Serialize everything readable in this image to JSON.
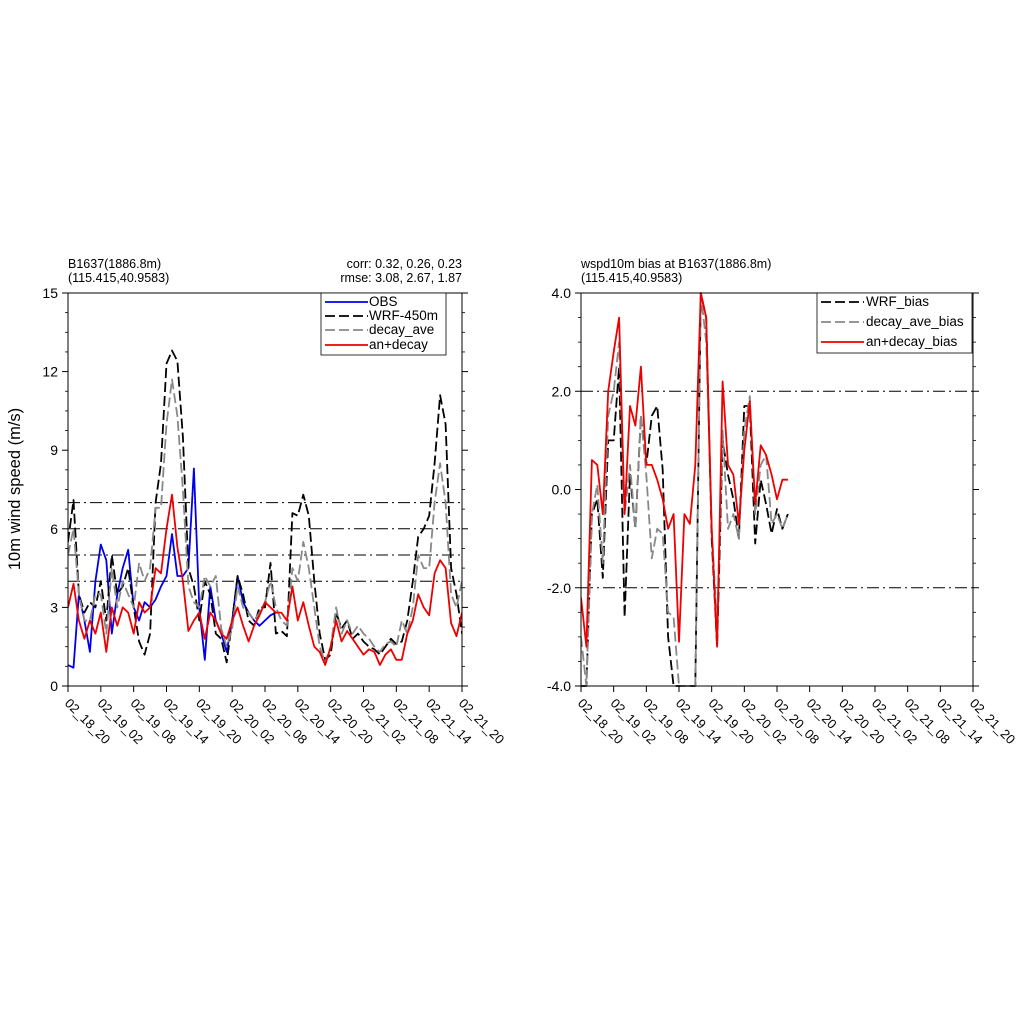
{
  "colors": {
    "obs": "#0000ee",
    "wrf": "#000000",
    "decay": "#888888",
    "andecay": "#ee0000",
    "axis": "#000000"
  },
  "left": {
    "title_line1": "B1637(1886.8m)",
    "title_line2": "(115.415,40.9583)",
    "stats_line1": "corr:  0.32, 0.26, 0.23",
    "stats_line2": "rmse: 3.08, 2.67, 1.87",
    "ylabel": "10m wind speed (m/s)",
    "legend": [
      "OBS",
      "WRF-450m",
      "decay_ave",
      "an+decay"
    ]
  },
  "right": {
    "title_line1": "wspd10m bias at B1637(1886.8m)",
    "title_line2": "(115.415,40.9583)",
    "legend": [
      "WRF_bias",
      "decay_ave_bias",
      "an+decay_bias"
    ]
  },
  "chart_data": [
    {
      "type": "line",
      "x_tick_labels": [
        "02_18_20",
        "02_19_02",
        "02_19_08",
        "02_19_14",
        "02_19_20",
        "02_20_02",
        "02_20_08",
        "02_20_14",
        "02_20_20",
        "02_21_02",
        "02_21_08",
        "02_21_14",
        "02_21_20"
      ],
      "xlim": [
        0,
        72
      ],
      "ylim": [
        0,
        15
      ],
      "y_ticks": [
        0,
        3,
        6,
        9,
        12,
        15
      ],
      "ylabel": "10m wind speed (m/s)",
      "reference_lines": [
        4,
        5,
        6,
        7
      ],
      "legend_position": "top-right",
      "series": [
        {
          "name": "OBS",
          "style": "solid",
          "color": "#0000ee",
          "x": [
            0,
            1,
            2,
            3,
            4,
            5,
            6,
            7,
            8,
            9,
            10,
            11,
            12,
            13,
            14,
            15,
            16,
            17,
            18,
            19,
            20,
            21,
            22,
            23,
            24,
            25,
            26,
            27,
            28,
            29,
            30,
            31,
            32,
            33,
            34,
            35,
            36,
            37,
            38
          ],
          "y": [
            0.8,
            0.7,
            3.5,
            2.5,
            1.3,
            4.0,
            5.4,
            4.8,
            2.0,
            3.5,
            4.5,
            5.2,
            3.0,
            2.5,
            3.2,
            3.0,
            3.3,
            3.8,
            4.2,
            5.8,
            4.2,
            4.2,
            4.5,
            8.3,
            3.0,
            1.0,
            3.8,
            2.5,
            2.0,
            1.3,
            2.5,
            4.2,
            3.2,
            2.8,
            2.5,
            2.3,
            2.5,
            2.7,
            2.8
          ]
        },
        {
          "name": "WRF-450m",
          "style": "dash",
          "color": "#000000",
          "x": [
            0,
            1,
            2,
            3,
            4,
            5,
            6,
            7,
            8,
            9,
            10,
            11,
            12,
            13,
            14,
            15,
            16,
            17,
            18,
            19,
            20,
            21,
            22,
            23,
            24,
            25,
            26,
            27,
            28,
            29,
            30,
            31,
            32,
            33,
            34,
            35,
            36,
            37,
            38,
            39,
            40,
            41,
            42,
            43,
            44,
            45,
            46,
            47,
            48,
            49,
            50,
            51,
            52,
            53,
            54,
            55,
            56,
            57,
            58,
            59,
            60,
            61,
            62,
            63,
            64,
            65,
            66,
            67,
            68,
            69,
            70,
            71,
            72
          ],
          "y": [
            5.5,
            7.1,
            3.5,
            2.8,
            3.2,
            3.0,
            4.0,
            2.5,
            5.0,
            3.5,
            3.8,
            4.5,
            3.0,
            1.7,
            1.2,
            2.0,
            7.0,
            8.5,
            12.3,
            12.8,
            12.4,
            9.5,
            4.5,
            3.8,
            2.5,
            4.0,
            3.5,
            2.0,
            1.8,
            0.9,
            2.5,
            4.2,
            3.5,
            2.5,
            2.3,
            3.0,
            3.0,
            4.7,
            2.0,
            2.1,
            1.9,
            6.6,
            6.5,
            7.3,
            6.5,
            4.0,
            2.0,
            1.0,
            1.2,
            2.8,
            2.2,
            2.5,
            1.8,
            2.0,
            1.7,
            1.5,
            1.4,
            1.2,
            1.5,
            1.8,
            1.6,
            1.7,
            2.5,
            4.0,
            5.7,
            6.0,
            6.5,
            8.5,
            11.1,
            10.0,
            4.5,
            3.5,
            2.0
          ]
        },
        {
          "name": "decay_ave",
          "style": "dash",
          "color": "#888888",
          "x": [
            0,
            1,
            2,
            3,
            4,
            5,
            6,
            7,
            8,
            9,
            10,
            11,
            12,
            13,
            14,
            15,
            16,
            17,
            18,
            19,
            20,
            21,
            22,
            23,
            24,
            25,
            26,
            27,
            28,
            29,
            30,
            31,
            32,
            33,
            34,
            35,
            36,
            37,
            38,
            39,
            40,
            41,
            42,
            43,
            44,
            45,
            46,
            47,
            48,
            49,
            50,
            51,
            52,
            53,
            54,
            55,
            56,
            57,
            58,
            59,
            60,
            61,
            62,
            63,
            64,
            65,
            66,
            67,
            68,
            69,
            70,
            71,
            72
          ],
          "y": [
            5.0,
            6.0,
            3.5,
            2.5,
            2.5,
            3.5,
            3.5,
            2.0,
            4.5,
            3.0,
            4.0,
            3.5,
            3.0,
            4.7,
            4.0,
            4.5,
            6.8,
            6.8,
            10.0,
            11.7,
            10.3,
            7.5,
            3.8,
            3.2,
            3.0,
            4.2,
            3.8,
            4.2,
            2.2,
            1.5,
            2.2,
            3.8,
            3.0,
            2.8,
            2.5,
            2.8,
            3.2,
            4.0,
            3.0,
            2.5,
            2.3,
            4.5,
            4.0,
            5.5,
            4.5,
            3.0,
            1.5,
            0.9,
            1.5,
            3.0,
            2.0,
            2.5,
            2.0,
            2.3,
            2.0,
            1.8,
            1.5,
            1.3,
            1.6,
            1.7,
            1.5,
            2.5,
            2.0,
            3.0,
            5.0,
            4.5,
            4.5,
            7.0,
            8.5,
            7.0,
            3.5,
            3.0,
            4.0
          ]
        },
        {
          "name": "an+decay",
          "style": "solid",
          "color": "#ee0000",
          "x": [
            0,
            1,
            2,
            3,
            4,
            5,
            6,
            7,
            8,
            9,
            10,
            11,
            12,
            13,
            14,
            15,
            16,
            17,
            18,
            19,
            20,
            21,
            22,
            23,
            24,
            25,
            26,
            27,
            28,
            29,
            30,
            31,
            32,
            33,
            34,
            35,
            36,
            37,
            38,
            39,
            40,
            41,
            42,
            43,
            44,
            45,
            46,
            47,
            48,
            49,
            50,
            51,
            52,
            53,
            54,
            55,
            56,
            57,
            58,
            59,
            60,
            61,
            62,
            63,
            64,
            65,
            66,
            67,
            68,
            69,
            70,
            71,
            72
          ],
          "y": [
            3.0,
            3.9,
            2.5,
            1.8,
            2.5,
            2.0,
            2.8,
            1.3,
            3.0,
            2.3,
            3.0,
            2.8,
            2.0,
            3.2,
            2.8,
            3.0,
            4.5,
            4.3,
            6.0,
            7.3,
            5.3,
            4.0,
            2.1,
            2.5,
            2.8,
            1.8,
            2.8,
            2.5,
            2.0,
            1.8,
            2.5,
            3.0,
            2.3,
            1.7,
            2.3,
            2.7,
            3.2,
            3.0,
            2.8,
            2.8,
            2.5,
            3.8,
            2.5,
            3.2,
            2.3,
            1.5,
            1.3,
            0.8,
            1.5,
            2.5,
            1.7,
            2.1,
            1.8,
            1.5,
            1.2,
            1.4,
            1.3,
            0.8,
            1.2,
            1.4,
            1.0,
            1.0,
            2.0,
            2.5,
            3.5,
            3.0,
            2.7,
            4.3,
            4.8,
            4.5,
            2.4,
            1.9,
            2.8
          ]
        }
      ]
    },
    {
      "type": "line",
      "x_tick_labels": [
        "02_18_20",
        "02_19_02",
        "02_19_08",
        "02_19_14",
        "02_19_20",
        "02_20_02",
        "02_20_08",
        "02_20_14",
        "02_20_20",
        "02_21_02",
        "02_21_08",
        "02_21_14",
        "02_21_20"
      ],
      "xlim": [
        0,
        72
      ],
      "ylim": [
        -4,
        4
      ],
      "y_ticks": [
        -4,
        -2,
        0,
        2,
        4
      ],
      "y_tick_labels": [
        "-4.0",
        "-2.0",
        "0.0",
        "2.0",
        "4.0"
      ],
      "reference_lines": [
        -2,
        2
      ],
      "legend_position": "top-right",
      "series": [
        {
          "name": "WRF_bias",
          "style": "dash",
          "color": "#000000",
          "x": [
            0,
            1,
            2,
            3,
            4,
            5,
            6,
            7,
            8,
            9,
            10,
            11,
            12,
            13,
            14,
            15,
            16,
            17,
            18,
            19,
            20,
            21,
            22,
            23,
            24,
            25,
            26,
            27,
            28,
            29,
            30,
            31,
            32,
            33,
            34,
            35,
            36,
            37,
            38
          ],
          "y": [
            -4.0,
            -4.0,
            -0.5,
            -0.2,
            -1.8,
            1.0,
            1.0,
            2.5,
            -2.6,
            0.3,
            -0.8,
            1.5,
            0.5,
            1.5,
            1.7,
            0.4,
            -3.0,
            -4.0,
            -4.0,
            -4.0,
            -4.0,
            -4.0,
            4.0,
            3.5,
            -1.0,
            -3.2,
            1.0,
            0.3,
            -0.2,
            -1.0,
            1.7,
            1.7,
            -1.1,
            0.2,
            -0.3,
            -0.9,
            -0.4,
            -0.8,
            -0.5
          ]
        },
        {
          "name": "decay_ave_bias",
          "style": "dash",
          "color": "#888888",
          "x": [
            0,
            1,
            2,
            3,
            4,
            5,
            6,
            7,
            8,
            9,
            10,
            11,
            12,
            13,
            14,
            15,
            16,
            17,
            18,
            19,
            20,
            21,
            22,
            23,
            24,
            25,
            26,
            27,
            28,
            29,
            30,
            31,
            32,
            33,
            34,
            35,
            36,
            37,
            38
          ],
          "y": [
            -3.0,
            -4.0,
            -0.5,
            0.1,
            -1.5,
            1.5,
            2.0,
            3.0,
            -0.5,
            0.5,
            -0.8,
            1.5,
            0.3,
            -1.4,
            -0.8,
            -0.9,
            -2.5,
            -2.6,
            -4.0,
            -4.0,
            -4.0,
            -4.0,
            4.0,
            3.0,
            -0.8,
            -2.8,
            1.2,
            -0.8,
            -0.5,
            -1.0,
            1.2,
            1.9,
            -0.5,
            0.5,
            0.7,
            -0.7,
            -0.5,
            -0.8,
            -0.5
          ]
        },
        {
          "name": "an+decay_bias",
          "style": "solid",
          "color": "#ee0000",
          "x": [
            0,
            1,
            2,
            3,
            4,
            5,
            6,
            7,
            8,
            9,
            10,
            11,
            12,
            13,
            14,
            15,
            16,
            17,
            18,
            19,
            20,
            21,
            22,
            23,
            24,
            25,
            26,
            27,
            28,
            29,
            30,
            31,
            32,
            33,
            34,
            35,
            36,
            37,
            38
          ],
          "y": [
            -2.2,
            -3.2,
            0.6,
            0.5,
            -0.5,
            2.0,
            2.8,
            3.5,
            -0.5,
            1.7,
            1.3,
            2.5,
            0.5,
            0.5,
            0.2,
            -0.2,
            -0.8,
            -0.5,
            -3.1,
            -0.5,
            -0.7,
            0.5,
            4.0,
            3.5,
            -0.8,
            -3.2,
            2.2,
            0.5,
            0.3,
            -0.7,
            0.8,
            1.8,
            -0.3,
            0.9,
            0.7,
            0.3,
            -0.2,
            0.2,
            0.2
          ]
        }
      ]
    }
  ]
}
